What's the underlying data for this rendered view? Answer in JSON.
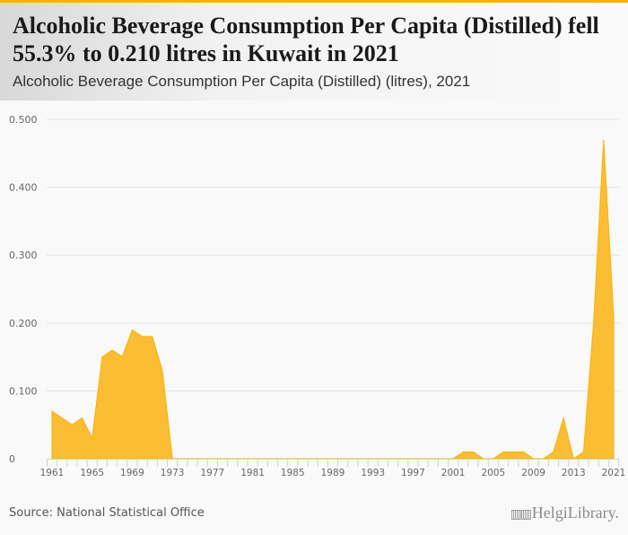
{
  "header": {
    "title": "Alcoholic Beverage Consumption Per Capita (Distilled) fell 55.3% to 0.210 litres in Kuwait in 2021",
    "subtitle": "Alcoholic Beverage Consumption Per Capita (Distilled) (litres), 2021"
  },
  "footer": {
    "source": "Source: National Statistical Office",
    "logo_text": "HelgiLibrary."
  },
  "colors": {
    "accent": "#f5b400",
    "fill": "#fbbd33",
    "grid": "#e3e3e3",
    "axis": "#c8d3e6"
  },
  "chart_data": {
    "type": "area",
    "title": "Alcoholic Beverage Consumption Per Capita (Distilled) (litres), 2021",
    "xlabel": "",
    "ylabel": "litres",
    "ylim": [
      0,
      0.5
    ],
    "yticks": [
      0,
      0.1,
      0.2,
      0.3,
      0.4,
      0.5
    ],
    "ytick_labels": [
      "0",
      "0.100",
      "0.200",
      "0.300",
      "0.400",
      "0.500"
    ],
    "grid": true,
    "x": [
      1961,
      1962,
      1963,
      1964,
      1965,
      1966,
      1967,
      1968,
      1969,
      1970,
      1971,
      1972,
      1973,
      1974,
      1975,
      1976,
      1977,
      1978,
      1979,
      1980,
      1981,
      1982,
      1983,
      1984,
      1985,
      1986,
      1987,
      1988,
      1989,
      1990,
      1991,
      1992,
      1993,
      1994,
      1995,
      1996,
      1997,
      1998,
      1999,
      2000,
      2001,
      2002,
      2003,
      2004,
      2005,
      2006,
      2007,
      2008,
      2009,
      2010,
      2011,
      2012,
      2013,
      2014,
      2019,
      2020,
      2021
    ],
    "values": [
      0.07,
      0.06,
      0.05,
      0.06,
      0.03,
      0.15,
      0.16,
      0.15,
      0.19,
      0.18,
      0.18,
      0.13,
      0,
      0,
      0,
      0,
      0,
      0,
      0,
      0,
      0,
      0,
      0,
      0,
      0,
      0,
      0,
      0,
      0,
      0,
      0,
      0,
      0,
      0,
      0,
      0,
      0,
      0,
      0,
      0,
      0,
      0.01,
      0.01,
      0,
      0,
      0.01,
      0.01,
      0.01,
      0,
      0,
      0.01,
      0.06,
      0,
      0.01,
      0.2,
      0.47,
      0.21
    ],
    "xtick_labels": [
      "1961",
      "1965",
      "1969",
      "1973",
      "1977",
      "1981",
      "1985",
      "1989",
      "1993",
      "1997",
      "2001",
      "2005",
      "2009",
      "2013",
      "2021"
    ]
  }
}
